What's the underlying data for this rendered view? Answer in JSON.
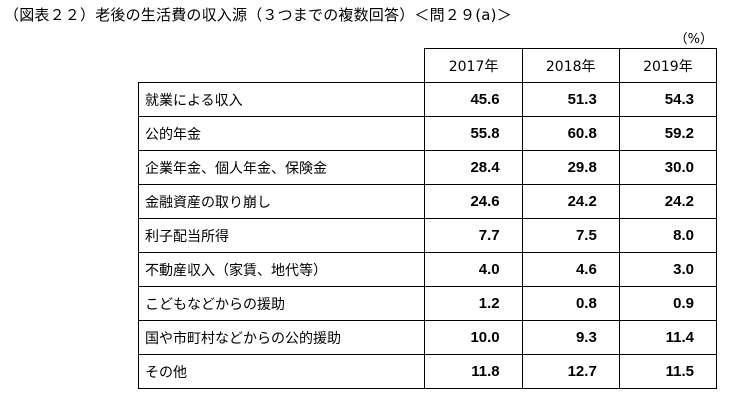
{
  "title": "（図表２２）老後の生活費の収入源（３つまでの複数回答）＜問２９(a)＞",
  "unit_label": "（%）",
  "chart_data": {
    "type": "table",
    "columns": [
      "2017年",
      "2018年",
      "2019年"
    ],
    "rows": [
      {
        "label": "就業による収入",
        "values": [
          "45.6",
          "51.3",
          "54.3"
        ]
      },
      {
        "label": "公的年金",
        "values": [
          "55.8",
          "60.8",
          "59.2"
        ]
      },
      {
        "label": "企業年金、個人年金、保険金",
        "values": [
          "28.4",
          "29.8",
          "30.0"
        ]
      },
      {
        "label": "金融資産の取り崩し",
        "values": [
          "24.6",
          "24.2",
          "24.2"
        ]
      },
      {
        "label": "利子配当所得",
        "values": [
          "7.7",
          "7.5",
          "8.0"
        ]
      },
      {
        "label": "不動産収入（家賃、地代等）",
        "values": [
          "4.0",
          "4.6",
          "3.0"
        ]
      },
      {
        "label": "こどもなどからの援助",
        "values": [
          "1.2",
          "0.8",
          "0.9"
        ]
      },
      {
        "label": "国や市町村などからの公的援助",
        "values": [
          "10.0",
          "9.3",
          "11.4"
        ]
      },
      {
        "label": "その他",
        "values": [
          "11.8",
          "12.7",
          "11.5"
        ]
      }
    ]
  }
}
